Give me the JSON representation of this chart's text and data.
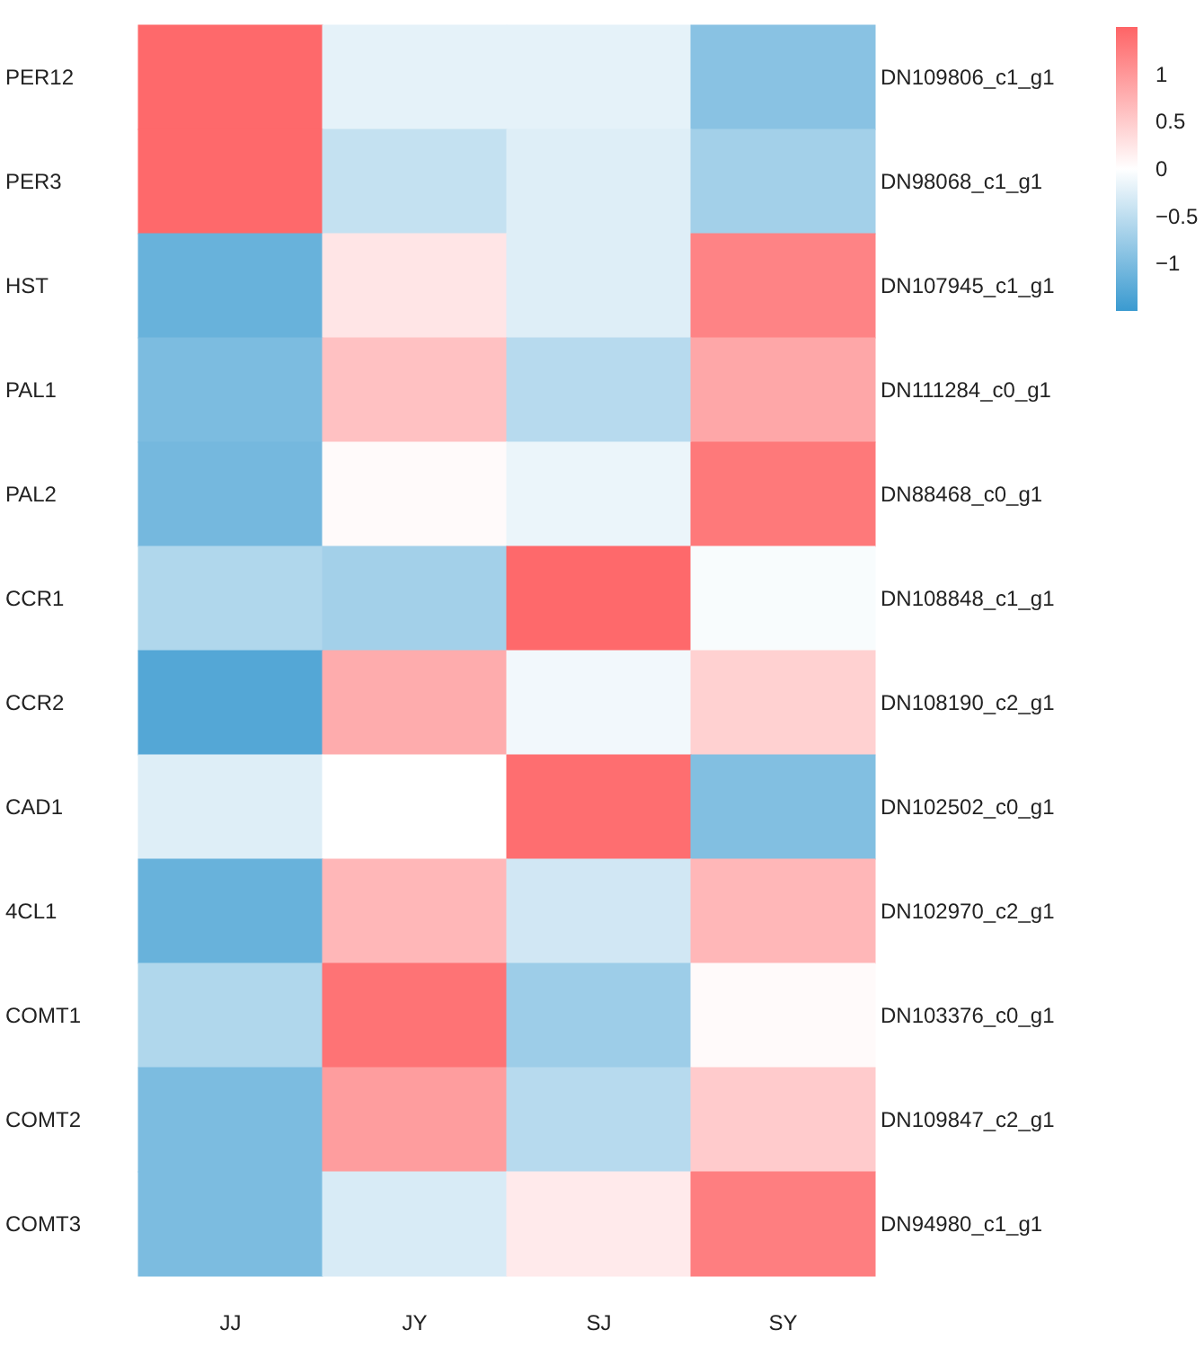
{
  "chart_data": {
    "type": "heatmap",
    "categories": [
      "JJ",
      "JY",
      "SJ",
      "SY"
    ],
    "y_categories": [
      "PER12",
      "PER3",
      "HST",
      "PAL1",
      "PAL2",
      "CCR1",
      "CCR2",
      "CAD1",
      "4CL1",
      "COMT1",
      "COMT2",
      "COMT3"
    ],
    "y2_categories": [
      "DN109806_c1_g1",
      "DN98068_c1_g1",
      "DN107945_c1_g1",
      "DN111284_c0_g1",
      "DN88468_c0_g1",
      "DN108848_c1_g1",
      "DN108190_c2_g1",
      "DN102502_c0_g1",
      "DN102970_c2_g1",
      "DN103376_c0_g1",
      "DN109847_c2_g1",
      "DN94980_c1_g1"
    ],
    "cells": [
      [
        1.45,
        -0.2,
        -0.2,
        -0.9
      ],
      [
        1.45,
        -0.45,
        -0.25,
        -0.7
      ],
      [
        -1.15,
        0.25,
        -0.25,
        1.2
      ],
      [
        -1.0,
        0.6,
        -0.55,
        0.85
      ],
      [
        -1.05,
        0.05,
        -0.15,
        1.3
      ],
      [
        -0.6,
        -0.7,
        1.45,
        -0.05
      ],
      [
        -1.3,
        0.8,
        -0.1,
        0.45
      ],
      [
        -0.25,
        0,
        1.4,
        -0.95
      ],
      [
        -1.15,
        0.7,
        -0.35,
        0.7
      ],
      [
        -0.6,
        1.35,
        -0.75,
        0.05
      ],
      [
        -1.0,
        0.95,
        -0.55,
        0.5
      ],
      [
        -1.0,
        -0.3,
        0.2,
        1.25
      ]
    ],
    "clim": [
      -1.5,
      1.5
    ],
    "cticks": [
      1,
      0.5,
      0,
      {
        "value": -0.5,
        "label": "−0.5"
      },
      {
        "value": -1,
        "label": "−1"
      }
    ]
  }
}
